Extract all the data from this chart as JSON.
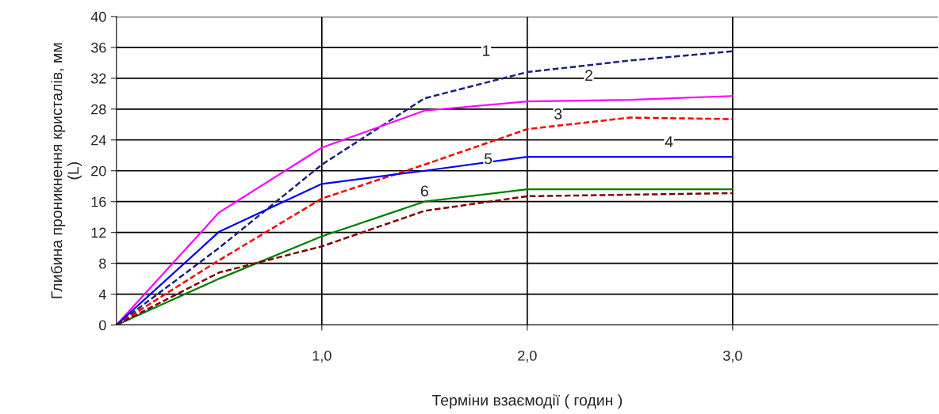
{
  "chart_data": {
    "type": "line",
    "xlabel": "Терміни взаємодії ( годин )",
    "ylabel": "Глибина проникнення кристалів, мм\n(L)",
    "x": [
      0,
      0.5,
      1,
      1.5,
      2,
      2.5,
      3
    ],
    "series": [
      {
        "color": "#1a237e",
        "line_style": "dashed",
        "values": [
          0,
          10,
          20.8,
          29.4,
          32.8,
          34.3,
          35.5
        ]
      },
      {
        "color": "#ff00ff",
        "line_style": "solid",
        "values": [
          0,
          14.6,
          23,
          27.8,
          29,
          29.2,
          29.7
        ]
      },
      {
        "color": "#ff0000",
        "line_style": "dashed",
        "values": [
          0,
          8.4,
          16.4,
          20.8,
          25.4,
          26.9,
          26.7
        ]
      },
      {
        "color": "#0000ff",
        "line_style": "solid",
        "values": [
          0,
          12.1,
          18.3,
          20,
          21.8,
          21.8,
          21.8
        ]
      },
      {
        "color": "#008000",
        "line_style": "solid",
        "values": [
          0,
          6,
          11.5,
          16,
          17.6,
          17.6,
          17.6
        ]
      },
      {
        "color": "#800000",
        "line_style": "dashed",
        "values": [
          0,
          6.8,
          10.2,
          14.8,
          16.7,
          16.9,
          17.1
        ]
      }
    ],
    "annotations": [
      "1",
      "2",
      "3",
      "4",
      "5",
      "6"
    ],
    "xlim": [
      0,
      4
    ],
    "xticks": [
      {
        "value": 1,
        "label": "1,0"
      },
      {
        "value": 2,
        "label": "2,0"
      },
      {
        "value": 3,
        "label": "3,0"
      }
    ],
    "ylim": [
      0,
      40
    ],
    "yticks": [
      0,
      4,
      8,
      12,
      16,
      20,
      24,
      28,
      32,
      36,
      40
    ],
    "grid": true,
    "marker": "none"
  }
}
